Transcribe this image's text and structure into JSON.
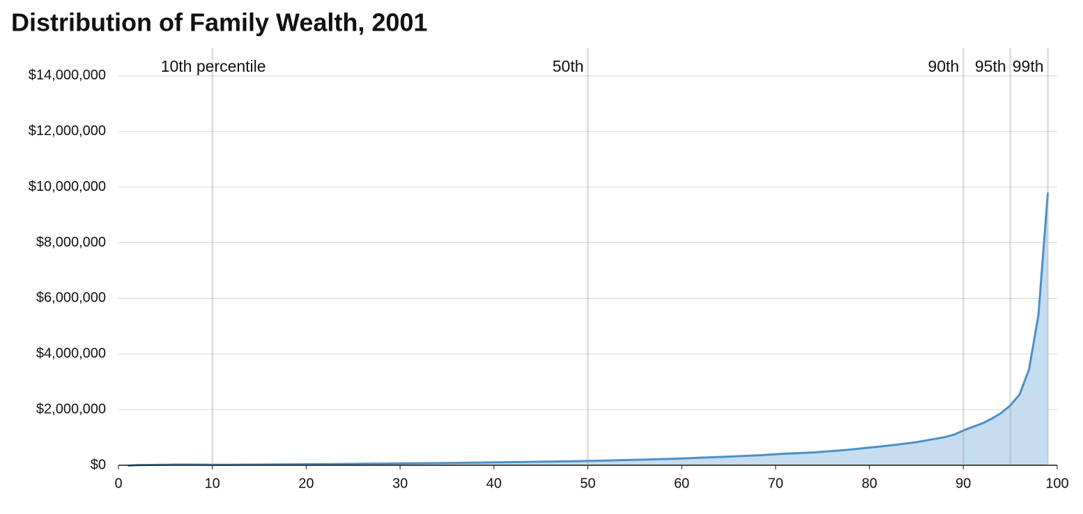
{
  "chart_data": {
    "type": "area",
    "title": "Distribution of Family Wealth, 2001",
    "x": [
      1,
      2,
      3,
      4,
      5,
      6,
      7,
      8,
      9,
      10,
      11,
      12,
      13,
      14,
      15,
      16,
      17,
      18,
      19,
      20,
      21,
      22,
      23,
      24,
      25,
      26,
      27,
      28,
      29,
      30,
      31,
      32,
      33,
      34,
      35,
      36,
      37,
      38,
      39,
      40,
      41,
      42,
      43,
      44,
      45,
      46,
      47,
      48,
      49,
      50,
      51,
      52,
      53,
      54,
      55,
      56,
      57,
      58,
      59,
      60,
      61,
      62,
      63,
      64,
      65,
      66,
      67,
      68,
      69,
      70,
      71,
      72,
      73,
      74,
      75,
      76,
      77,
      78,
      79,
      80,
      81,
      82,
      83,
      84,
      85,
      86,
      87,
      88,
      89,
      90,
      91,
      92,
      93,
      94,
      95,
      96,
      97,
      98,
      99
    ],
    "values": [
      -20000,
      5000,
      10000,
      15000,
      20000,
      25000,
      25000,
      25000,
      22000,
      20000,
      20000,
      20000,
      22000,
      24000,
      26000,
      28000,
      30000,
      32000,
      35000,
      38000,
      40000,
      42000,
      45000,
      48000,
      50000,
      53000,
      56000,
      59000,
      62000,
      65000,
      68000,
      71000,
      74000,
      78000,
      82000,
      86000,
      90000,
      94000,
      98000,
      102000,
      107000,
      112000,
      117000,
      122000,
      127000,
      132000,
      137000,
      142000,
      148000,
      155000,
      162000,
      170000,
      178000,
      186000,
      195000,
      204000,
      213000,
      222000,
      232000,
      245000,
      258000,
      271000,
      284000,
      297000,
      310000,
      325000,
      340000,
      355000,
      375000,
      395000,
      415000,
      430000,
      445000,
      460000,
      485000,
      510000,
      535000,
      565000,
      600000,
      635000,
      670000,
      705000,
      745000,
      785000,
      830000,
      890000,
      950000,
      1010000,
      1100000,
      1250000,
      1380000,
      1500000,
      1670000,
      1870000,
      2150000,
      2550000,
      3450000,
      5400000,
      9800000
    ],
    "line_color": "#4a90c8",
    "fill_color": "#c6dcef",
    "xlim": [
      0,
      100
    ],
    "ylim": [
      0,
      15000000
    ],
    "xticks": [
      0,
      10,
      20,
      30,
      40,
      50,
      60,
      70,
      80,
      90,
      100
    ],
    "yticks": [
      {
        "value": 0,
        "label": "$0"
      },
      {
        "value": 2000000,
        "label": "$2,000,000"
      },
      {
        "value": 4000000,
        "label": "$4,000,000"
      },
      {
        "value": 6000000,
        "label": "$6,000,000"
      },
      {
        "value": 8000000,
        "label": "$8,000,000"
      },
      {
        "value": 10000000,
        "label": "$10,000,000"
      },
      {
        "value": 12000000,
        "label": "$12,000,000"
      },
      {
        "value": 14000000,
        "label": "$14,000,000"
      }
    ],
    "grid": true,
    "annotations": [
      {
        "x": 10,
        "label": "10th percentile"
      },
      {
        "x": 50,
        "label": "50th"
      },
      {
        "x": 90,
        "label": "90th"
      },
      {
        "x": 95,
        "label": "95th"
      },
      {
        "x": 99,
        "label": "99th"
      }
    ]
  }
}
